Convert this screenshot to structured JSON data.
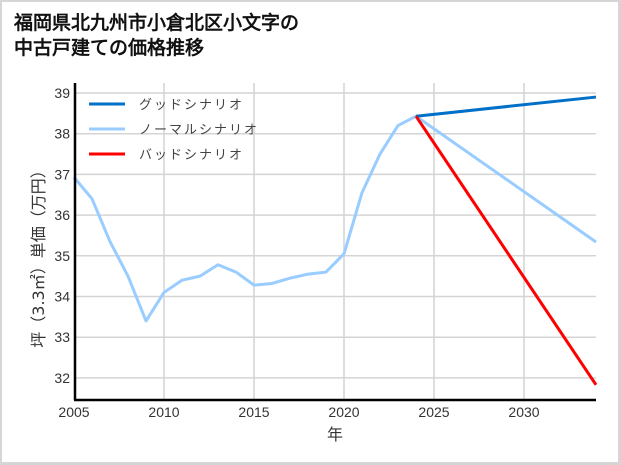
{
  "title": {
    "line1": "福岡県北九州市小倉北区小文字の",
    "line2": "中古戸建ての価格推移"
  },
  "chart_data": {
    "type": "line",
    "title": "福岡県北九州市小倉北区小文字の中古戸建ての価格推移",
    "xlabel": "年",
    "ylabel": "坪（3.3㎡）単価（万円）",
    "xlim": [
      2005,
      2034
    ],
    "ylim": [
      31.6,
      39.25
    ],
    "xticks": [
      2005,
      2010,
      2015,
      2020,
      2025,
      2030
    ],
    "yticks": [
      32,
      33,
      34,
      35,
      36,
      37,
      38,
      39
    ],
    "grid": true,
    "legend_position": "upper left",
    "series": [
      {
        "name": "グッドシナリオ",
        "color": "#0070c8",
        "x": [
          2024,
          2034
        ],
        "values": [
          38.43,
          38.9
        ]
      },
      {
        "name": "ノーマルシナリオ",
        "color": "#99ccff",
        "x": [
          2005,
          2006,
          2007,
          2008,
          2009,
          2010,
          2011,
          2012,
          2013,
          2014,
          2015,
          2016,
          2017,
          2018,
          2019,
          2020,
          2021,
          2022,
          2023,
          2024,
          2034
        ],
        "values": [
          36.93,
          36.4,
          35.35,
          34.5,
          33.4,
          34.1,
          34.4,
          34.5,
          34.78,
          34.6,
          34.28,
          34.32,
          34.45,
          34.55,
          34.6,
          35.05,
          36.55,
          37.5,
          38.2,
          38.43,
          35.34
        ]
      },
      {
        "name": "バッドシナリオ",
        "color": "#ff0000",
        "x": [
          2024,
          2034
        ],
        "values": [
          38.43,
          31.83
        ]
      }
    ]
  },
  "axes": {
    "xlabel": "年",
    "ylabel": "坪（3.3㎡）単価（万円）"
  }
}
